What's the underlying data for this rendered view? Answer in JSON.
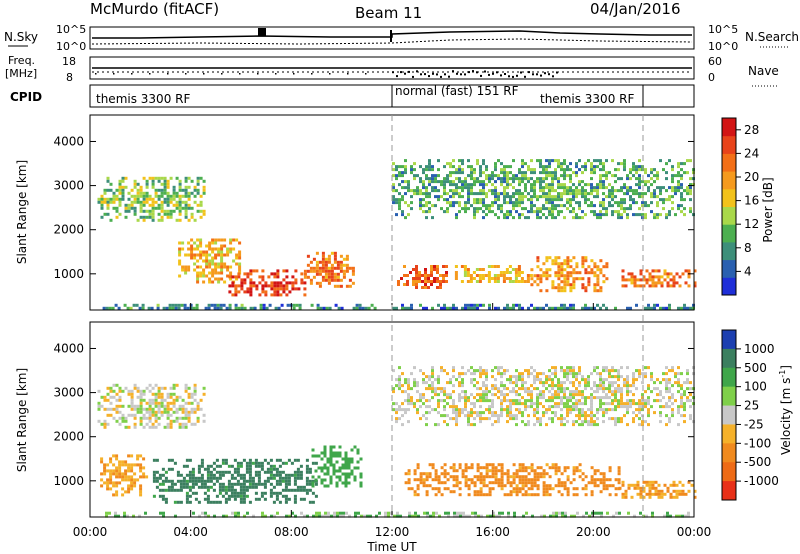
{
  "header": {
    "station": "McMurdo (fitACF)",
    "beam": "Beam 11",
    "date": "04/Jan/2016"
  },
  "panels": {
    "nsky_label": "N.Sky",
    "nsky_ticks": [
      "10^5",
      "10^0"
    ],
    "nsearch_label": "N.Search",
    "freq_label_top": "Freq.",
    "freq_label_bottom": "[MHz]",
    "freq_ticks": [
      "18",
      "8"
    ],
    "nave_label": "Nave",
    "nave_ticks": [
      "60",
      "0"
    ],
    "cpid_label": "CPID",
    "cpid_segments": [
      {
        "label": "themis 3300 RF",
        "start_hour": 0,
        "end_hour": 12
      },
      {
        "label": "normal (fast) 151 RF",
        "start_hour": 12,
        "end_hour": 22
      },
      {
        "label": "themis 3300 RF",
        "start_hour": 16.5,
        "end_hour": 22
      }
    ]
  },
  "colorbars": {
    "power": {
      "label": "Power [dB]",
      "ticks": [
        "4",
        "8",
        "12",
        "16",
        "20",
        "24",
        "28"
      ],
      "colors": [
        "#1f2fd8",
        "#2a60b0",
        "#3d8f7a",
        "#4caf50",
        "#a9d84a",
        "#f2c21b",
        "#f59a1e",
        "#f36f17",
        "#e8431a",
        "#d21414"
      ]
    },
    "velocity": {
      "label_text": "Velocity [m s",
      "label_sup": "-1",
      "label_end": "]",
      "ticks": [
        "1000",
        "500",
        "100",
        "25",
        "-25",
        "-100",
        "-500",
        "-1000"
      ],
      "colors": [
        "#1c3fb0",
        "#3b7f5f",
        "#3fa64a",
        "#7fd04a",
        "#c8c8c8",
        "#f5b12a",
        "#f08a1e",
        "#ee6b16",
        "#e83018"
      ]
    }
  },
  "chart_data": [
    {
      "type": "heatmap",
      "title": "Power",
      "ylabel": "Slant Range [km]",
      "xlabel": "",
      "yticks": [
        "1000",
        "2000",
        "3000",
        "4000"
      ],
      "ylim": [
        180,
        4600
      ],
      "xlim": [
        0,
        24
      ],
      "regions": [
        {
          "x": [
            0.5,
            6.5
          ],
          "y": [
            200,
            320
          ],
          "value": 8
        },
        {
          "x": [
            6.5,
            11.5
          ],
          "y": [
            200,
            320
          ],
          "value": 6
        },
        {
          "x": [
            12,
            24
          ],
          "y": [
            200,
            320
          ],
          "value": 6
        },
        {
          "x": [
            0.3,
            4.5
          ],
          "y": [
            2200,
            3200
          ],
          "value": 12
        },
        {
          "x": [
            3.5,
            6.0
          ],
          "y": [
            800,
            1800
          ],
          "value": 18
        },
        {
          "x": [
            5.5,
            8.5
          ],
          "y": [
            500,
            1100
          ],
          "value": 26
        },
        {
          "x": [
            8.5,
            10.5
          ],
          "y": [
            700,
            1500
          ],
          "value": 22
        },
        {
          "x": [
            12.2,
            14.2
          ],
          "y": [
            700,
            1200
          ],
          "value": 24
        },
        {
          "x": [
            14.5,
            17.5
          ],
          "y": [
            800,
            1200
          ],
          "value": 18
        },
        {
          "x": [
            17.5,
            20.5
          ],
          "y": [
            600,
            1400
          ],
          "value": 20
        },
        {
          "x": [
            21.0,
            24
          ],
          "y": [
            700,
            1100
          ],
          "value": 22
        },
        {
          "x": [
            12,
            24
          ],
          "y": [
            2300,
            3600
          ],
          "value": 10
        }
      ]
    },
    {
      "type": "heatmap",
      "title": "Velocity",
      "ylabel": "Slant Range [km]",
      "xlabel": "Time UT",
      "yticks": [
        "1000",
        "2000",
        "3000",
        "4000"
      ],
      "xticks": [
        "00:00",
        "04:00",
        "08:00",
        "12:00",
        "16:00",
        "20:00",
        "00:00"
      ],
      "ylim": [
        180,
        4600
      ],
      "xlim": [
        0,
        24
      ],
      "regions": [
        {
          "x": [
            0.3,
            4.5
          ],
          "y": [
            2200,
            3200
          ],
          "value": 0
        },
        {
          "x": [
            0.4,
            2.2
          ],
          "y": [
            700,
            1600
          ],
          "value": -100
        },
        {
          "x": [
            2.5,
            9.0
          ],
          "y": [
            500,
            1500
          ],
          "value": 300
        },
        {
          "x": [
            8.8,
            10.8
          ],
          "y": [
            900,
            1800
          ],
          "value": 150
        },
        {
          "x": [
            0,
            24
          ],
          "y": [
            200,
            300
          ],
          "value": 40
        },
        {
          "x": [
            12,
            24
          ],
          "y": [
            2300,
            3600
          ],
          "value": 0
        },
        {
          "x": [
            12.5,
            21.0
          ],
          "y": [
            700,
            1400
          ],
          "value": -150
        },
        {
          "x": [
            21.0,
            24
          ],
          "y": [
            600,
            1000
          ],
          "value": -100
        }
      ]
    }
  ]
}
